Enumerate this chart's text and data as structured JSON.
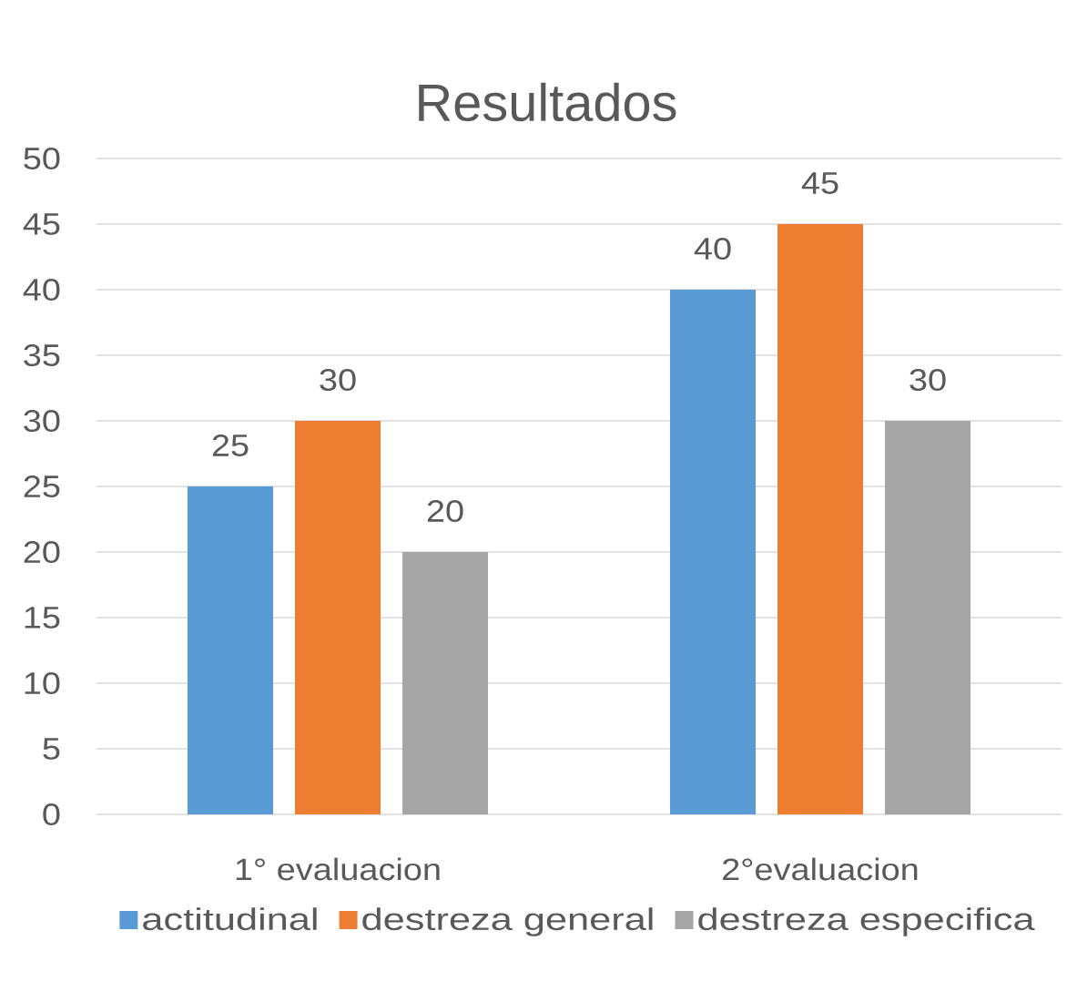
{
  "chart_data": {
    "type": "bar",
    "title": "Resultados",
    "categories": [
      "1° evaluacion",
      "2°evaluacion"
    ],
    "series": [
      {
        "name": "actitudinal",
        "color": "#5b9bd5",
        "values": [
          25,
          40
        ]
      },
      {
        "name": "destreza general",
        "color": "#ed7d31",
        "values": [
          30,
          45
        ]
      },
      {
        "name": "destreza especifica",
        "color": "#a5a5a5",
        "values": [
          20,
          30
        ]
      }
    ],
    "ylim": [
      0,
      50
    ],
    "yticks": [
      0,
      5,
      10,
      15,
      20,
      25,
      30,
      35,
      40,
      45,
      50
    ],
    "grid": "y",
    "legend": "bottom",
    "data_labels": true
  }
}
